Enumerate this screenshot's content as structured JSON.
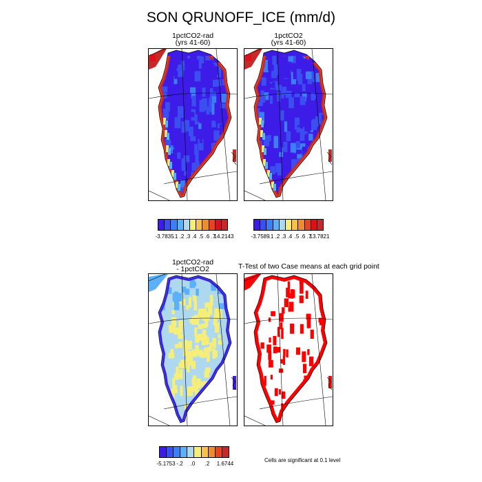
{
  "title": "SON QRUNOFF_ICE (mm/d)",
  "panels": {
    "p1": {
      "title1": "1pctCO2-rad",
      "title2": "(yrs 41-60)"
    },
    "p2": {
      "title1": "1pctCO2",
      "title2": "(yrs 41-60)"
    },
    "p3": {
      "title1": "1pctCO2-rad",
      "title2": "- 1pctCO2"
    },
    "p4": {
      "title": "T-Test of two Case means at each grid point"
    }
  },
  "colors": {
    "absolute_scale": [
      "#3e1ce8",
      "#3b4ef0",
      "#3c7ff4",
      "#5cb0f7",
      "#aed8ee",
      "#f5ee7a",
      "#f8c14b",
      "#ef8c2d",
      "#e94122",
      "#e00d1c",
      "#c62a28"
    ],
    "diff_scale": [
      "#3e1ce8",
      "#3b4ef0",
      "#3c7ff4",
      "#5cb0f7",
      "#aed8ee",
      "#f5ee7a",
      "#f8c14b",
      "#ef8c2d",
      "#e94122",
      "#c62a28"
    ],
    "significant": "#ff0000"
  },
  "colorbars": {
    "cb1": {
      "labels": [
        "-3.7835",
        ".1",
        ".2",
        ".3",
        ".4",
        ".5",
        ".6",
        ".7",
        "14.2143"
      ]
    },
    "cb2": {
      "labels": [
        "-3.7589",
        ".1",
        ".2",
        ".3",
        ".4",
        ".5",
        ".6",
        ".7",
        "13.7821"
      ]
    },
    "cb3": {
      "labels": [
        "-5.1753",
        "-.2",
        ".0",
        ".2",
        "1.6744"
      ]
    }
  },
  "note": "Cells are significant at 0.1 level"
}
